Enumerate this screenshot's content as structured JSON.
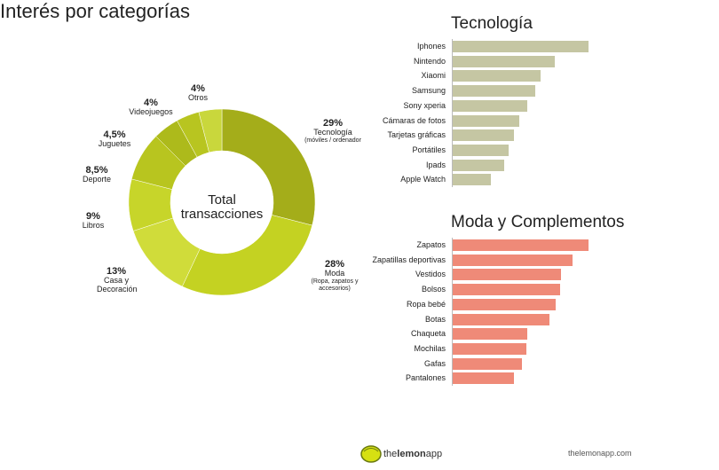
{
  "chart_data": [
    {
      "type": "pie",
      "title": "Interés por categorías",
      "center_text": [
        "Total",
        "transacciones"
      ],
      "slices": [
        {
          "label": "Tecnología",
          "sublabel": "(móviles / ordenador",
          "value": 29,
          "display": "29%",
          "color": "#a4ad1a"
        },
        {
          "label": "Moda",
          "sublabel": "(Ropa, zapatos y accesorios)",
          "value": 28,
          "display": "28%",
          "color": "#c4d222"
        },
        {
          "label": "Casa y Decoración",
          "sublabel": "",
          "value": 13,
          "display": "13%",
          "color": "#d0dc3a"
        },
        {
          "label": "Libros",
          "sublabel": "",
          "value": 9,
          "display": "9%",
          "color": "#c7d52a"
        },
        {
          "label": "Deporte",
          "sublabel": "",
          "value": 8.5,
          "display": "8,5%",
          "color": "#b8c51f"
        },
        {
          "label": "Juguetes",
          "sublabel": "",
          "value": 4.5,
          "display": "4,5%",
          "color": "#adba1b"
        },
        {
          "label": "Videojuegos",
          "sublabel": "",
          "value": 4,
          "display": "4%",
          "color": "#b8c520"
        },
        {
          "label": "Otros",
          "sublabel": "",
          "value": 4,
          "display": "4%",
          "color": "#c9d73c"
        }
      ]
    },
    {
      "type": "bar",
      "title": "Tecnología",
      "color": "#c5c6a3",
      "categories": [
        "Iphones",
        "Nintendo",
        "Xiaomi",
        "Samsung",
        "Sony xperia",
        "Cámaras de fotos",
        "Tarjetas gráficas",
        "Portátiles",
        "Ipads",
        "Apple Watch"
      ],
      "values": [
        100,
        75,
        65,
        61,
        55,
        49,
        45,
        41,
        38,
        28
      ]
    },
    {
      "type": "bar",
      "title": "Moda y Complementos",
      "color": "#ef8a78",
      "categories": [
        "Zapatos",
        "Zapatillas deportivas",
        "Vestidos",
        "Bolsos",
        "Ropa bebé",
        "Botas",
        "Chaqueta",
        "Mochilas",
        "Gafas",
        "Pantalones"
      ],
      "values": [
        100,
        88,
        80,
        79,
        76,
        71,
        55,
        54,
        51,
        45
      ]
    }
  ],
  "footer": {
    "brand_light": "the",
    "brand_bold": "lemon",
    "brand_end": "app",
    "url": "thelemonapp.com"
  }
}
